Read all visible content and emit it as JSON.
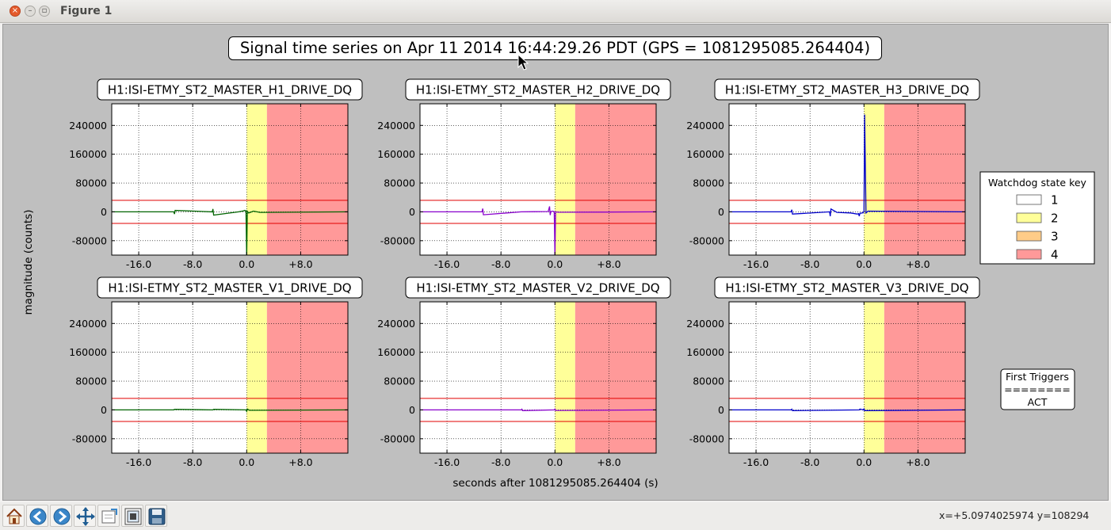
{
  "window": {
    "title": "Figure 1"
  },
  "figure": {
    "suptitle": "Signal time series on Apr 11 2014 16:44:29.26 PDT (GPS = 1081295085.264404)",
    "ylabel": "magnitude (counts)",
    "xlabel": "seconds after 1081295085.264404 (s)"
  },
  "legend": {
    "title": "Watchdog state key",
    "entries": [
      {
        "label": "1",
        "color": "#ffffff"
      },
      {
        "label": "2",
        "color": "#ffff99"
      },
      {
        "label": "3",
        "color": "#ffcc88"
      },
      {
        "label": "4",
        "color": "#ff9999"
      }
    ]
  },
  "first_triggers": {
    "title": "First Triggers",
    "separator": "========",
    "value": "ACT"
  },
  "status": {
    "coords": "x=+5.0974025974 y=108294"
  },
  "toolbar": {
    "buttons": [
      "home-icon",
      "back-icon",
      "forward-icon",
      "pan-icon",
      "zoom-icon",
      "subplots-icon",
      "save-icon"
    ]
  },
  "chart_data": {
    "type": "line",
    "xlim": [
      -20,
      15
    ],
    "ylim": [
      -120000,
      300000
    ],
    "xticks": [
      -16,
      -8,
      0,
      8
    ],
    "xtick_labels": [
      "-16.0",
      "-8.0",
      "0.0",
      "+8.0"
    ],
    "yticks": [
      -80000,
      0,
      80000,
      160000,
      240000
    ],
    "ytick_labels": [
      "-80000",
      "0",
      "80000",
      "160000",
      "240000"
    ],
    "grid": true,
    "threshold_lines": [
      32000,
      -32000
    ],
    "state_spans": [
      {
        "state": 2,
        "x": [
          0,
          3
        ],
        "color": "#ffff99"
      },
      {
        "state": 4,
        "x": [
          3,
          15
        ],
        "color": "#ff9999"
      }
    ],
    "panels": [
      {
        "title": "H1:ISI-ETMY_ST2_MASTER_H1_DRIVE_DQ",
        "color": "#006400",
        "x": [
          -20,
          -10.8,
          -10.7,
          -10.6,
          -5.1,
          -5.0,
          -4.9,
          -1.2,
          -0.5,
          -0.3,
          -0.1,
          0.0,
          0.1,
          0.3,
          1.0,
          2.0,
          15
        ],
        "y": [
          0,
          0,
          -6000,
          4000,
          0,
          8000,
          -9000,
          0,
          2500,
          4000,
          3000,
          -125000,
          1500,
          -3000,
          2000,
          -1500,
          0
        ]
      },
      {
        "title": "H1:ISI-ETMY_ST2_MASTER_H2_DRIVE_DQ",
        "color": "#8800cc",
        "x": [
          -20,
          -10.8,
          -10.7,
          -10.6,
          -5.0,
          -3.0,
          -1.0,
          -0.8,
          -0.7,
          -0.6,
          -0.3,
          -0.1,
          0.0,
          0.1,
          0.5,
          15
        ],
        "y": [
          0,
          0,
          9000,
          -8000,
          0,
          500,
          1000,
          15000,
          -9000,
          1000,
          2000,
          0,
          -125000,
          0,
          -1000,
          0
        ]
      },
      {
        "title": "H1:ISI-ETMY_ST2_MASTER_H3_DRIVE_DQ",
        "color": "#0000cc",
        "x": [
          -20,
          -10.8,
          -10.7,
          -10.6,
          -5.1,
          -5.0,
          -4.9,
          -4.0,
          -2.0,
          -1.0,
          -0.8,
          -0.7,
          -0.6,
          -0.2,
          0.0,
          0.1,
          0.3,
          0.6,
          15
        ],
        "y": [
          0,
          0,
          6000,
          -6000,
          0,
          -12000,
          8000,
          -1500,
          -3000,
          -6000,
          -5000,
          -12000,
          -4000,
          -3000,
          0,
          270000,
          -3000,
          2000,
          0
        ]
      },
      {
        "title": "H1:ISI-ETMY_ST2_MASTER_V1_DRIVE_DQ",
        "color": "#006400",
        "x": [
          -20,
          -10.8,
          -10.7,
          -5.0,
          -4.9,
          -0.1,
          0.0,
          0.1,
          0.4,
          15
        ],
        "y": [
          0,
          0,
          1500,
          0,
          1500,
          0,
          -4000,
          2500,
          -1000,
          0
        ]
      },
      {
        "title": "H1:ISI-ETMY_ST2_MASTER_V2_DRIVE_DQ",
        "color": "#8800cc",
        "x": [
          -20,
          -5.0,
          -4.9,
          -4.8,
          -0.1,
          0.0,
          0.1,
          15
        ],
        "y": [
          0,
          0,
          2000,
          -2000,
          0,
          2500,
          -1500,
          0
        ]
      },
      {
        "title": "H1:ISI-ETMY_ST2_MASTER_V3_DRIVE_DQ",
        "color": "#0000cc",
        "x": [
          -20,
          -10.8,
          -10.7,
          -10.6,
          -0.7,
          -0.6,
          -0.1,
          0.0,
          0.1,
          15
        ],
        "y": [
          0,
          0,
          2000,
          -2000,
          0,
          2500,
          0,
          3000,
          -2000,
          0
        ]
      }
    ]
  }
}
